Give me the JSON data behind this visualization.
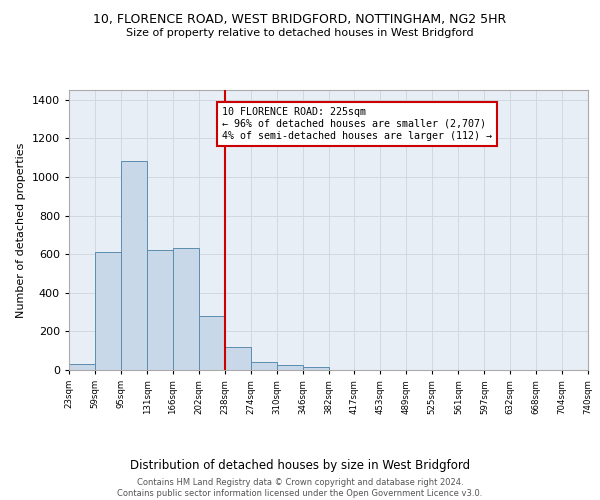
{
  "title1": "10, FLORENCE ROAD, WEST BRIDGFORD, NOTTINGHAM, NG2 5HR",
  "title2": "Size of property relative to detached houses in West Bridgford",
  "xlabel": "Distribution of detached houses by size in West Bridgford",
  "ylabel": "Number of detached properties",
  "bar_values": [
    30,
    610,
    1080,
    620,
    630,
    280,
    120,
    40,
    25,
    15,
    0,
    0,
    0,
    0,
    0,
    0,
    0,
    0,
    0,
    0
  ],
  "bin_edges": [
    23,
    59,
    95,
    131,
    166,
    202,
    238,
    274,
    310,
    346,
    382,
    417,
    453,
    489,
    525,
    561,
    597,
    632,
    668,
    704,
    740
  ],
  "bar_color": "#c8d8e8",
  "bar_edge_color": "#5b8db0",
  "vline_x": 238,
  "vline_color": "#cc0000",
  "annotation_box_text": "10 FLORENCE ROAD: 225sqm\n← 96% of detached houses are smaller (2,707)\n4% of semi-detached houses are larger (112) →",
  "annotation_box_color": "#cc0000",
  "annotation_box_bg": "#ffffff",
  "ylim": [
    0,
    1450
  ],
  "yticks": [
    0,
    200,
    400,
    600,
    800,
    1000,
    1200,
    1400
  ],
  "tick_labels": [
    "23sqm",
    "59sqm",
    "95sqm",
    "131sqm",
    "166sqm",
    "202sqm",
    "238sqm",
    "274sqm",
    "310sqm",
    "346sqm",
    "382sqm",
    "417sqm",
    "453sqm",
    "489sqm",
    "525sqm",
    "561sqm",
    "597sqm",
    "632sqm",
    "668sqm",
    "704sqm",
    "740sqm"
  ],
  "footer_text": "Contains HM Land Registry data © Crown copyright and database right 2024.\nContains public sector information licensed under the Open Government Licence v3.0.",
  "bg_color": "#ffffff",
  "grid_color": "#d0d8e0",
  "ax_bg_color": "#e8eef5"
}
